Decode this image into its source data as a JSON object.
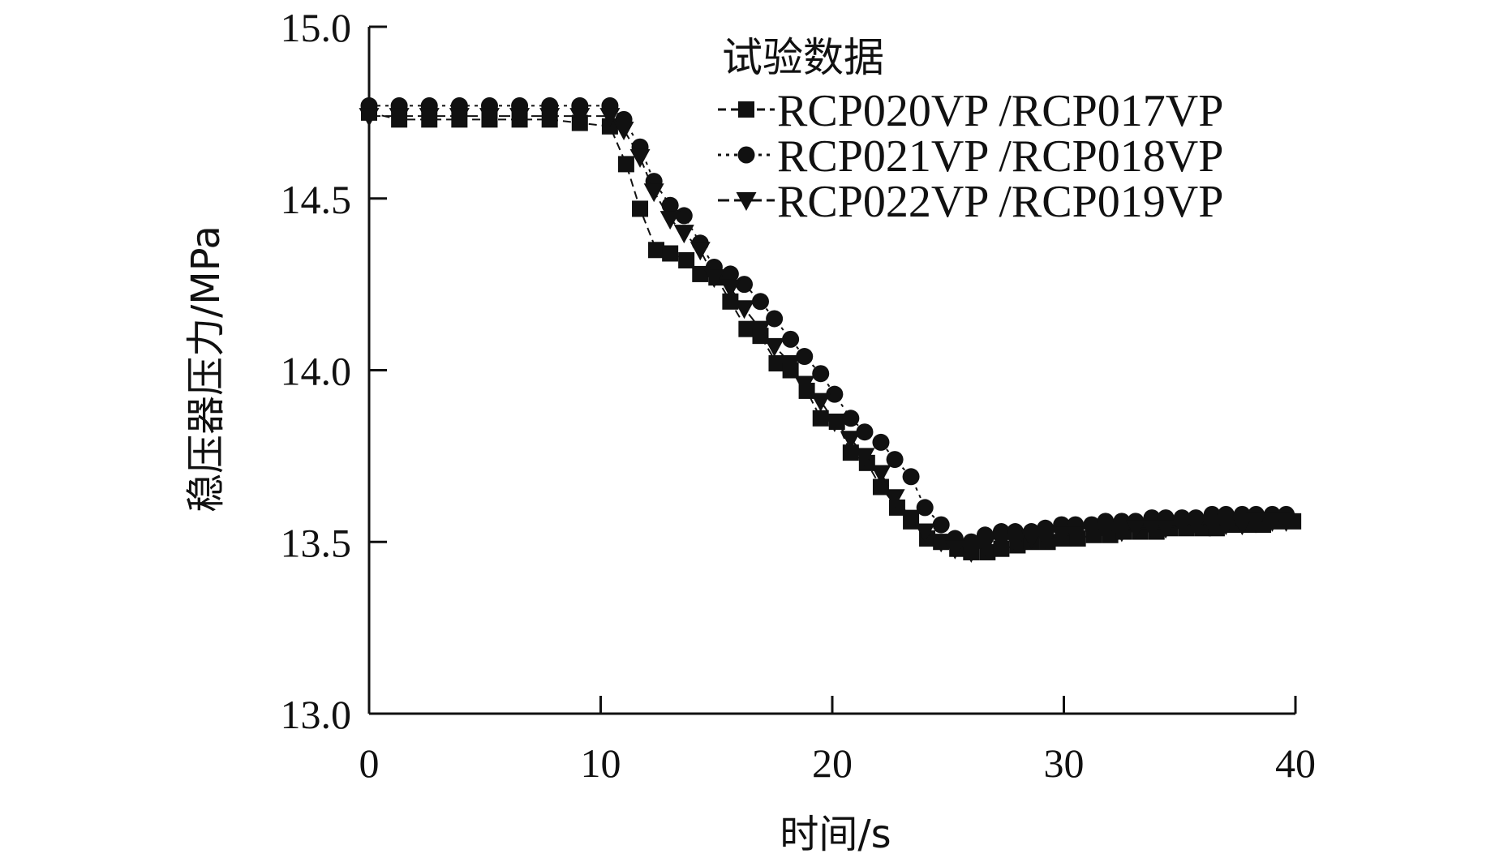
{
  "chart_data": {
    "type": "line",
    "xlabel": "时间/s",
    "ylabel": "稳压器压力/MPa",
    "xlim": [
      0,
      40
    ],
    "ylim": [
      13.0,
      15.0
    ],
    "xticks": [
      "0",
      "10",
      "20",
      "30",
      "40"
    ],
    "yticks": [
      "13.0",
      "13.5",
      "14.0",
      "14.5",
      "15.0"
    ],
    "grid": false,
    "legend": {
      "title": "试验数据",
      "placement": "top-right"
    },
    "series": [
      {
        "name": "RCP020VP /RCP017VP",
        "marker": "square",
        "x": [
          0,
          1.3,
          2.6,
          3.9,
          5.2,
          6.5,
          7.8,
          9.1,
          10.4,
          11.1,
          11.7,
          12.4,
          13.0,
          13.7,
          14.3,
          15.0,
          15.6,
          16.3,
          16.9,
          17.6,
          18.2,
          18.9,
          19.5,
          20.2,
          20.8,
          21.5,
          22.1,
          22.8,
          23.4,
          24.1,
          24.7,
          25.4,
          26.0,
          26.7,
          27.3,
          28.0,
          28.6,
          29.3,
          30.0,
          30.6,
          31.3,
          32.0,
          32.6,
          33.3,
          34.0,
          34.6,
          35.3,
          36.0,
          36.6,
          37.3,
          38.0,
          38.6,
          39.3,
          39.9
        ],
        "y": [
          14.75,
          14.73,
          14.73,
          14.73,
          14.73,
          14.73,
          14.73,
          14.72,
          14.71,
          14.6,
          14.47,
          14.35,
          14.34,
          14.32,
          14.28,
          14.27,
          14.2,
          14.12,
          14.1,
          14.02,
          14.0,
          13.94,
          13.86,
          13.85,
          13.76,
          13.73,
          13.66,
          13.6,
          13.56,
          13.51,
          13.5,
          13.48,
          13.47,
          13.47,
          13.48,
          13.49,
          13.5,
          13.5,
          13.51,
          13.51,
          13.52,
          13.52,
          13.53,
          13.53,
          13.53,
          13.54,
          13.54,
          13.54,
          13.54,
          13.55,
          13.55,
          13.55,
          13.56,
          13.56
        ]
      },
      {
        "name": "RCP021VP /RCP018VP",
        "marker": "circle",
        "x": [
          0,
          1.3,
          2.6,
          3.9,
          5.2,
          6.5,
          7.8,
          9.1,
          10.4,
          11.0,
          11.7,
          12.3,
          13.0,
          13.6,
          14.3,
          14.9,
          15.6,
          16.2,
          16.9,
          17.5,
          18.2,
          18.8,
          19.5,
          20.1,
          20.8,
          21.4,
          22.1,
          22.7,
          23.4,
          24.0,
          24.7,
          25.3,
          26.0,
          26.6,
          27.3,
          27.9,
          28.6,
          29.2,
          29.9,
          30.5,
          31.2,
          31.8,
          32.5,
          33.1,
          33.8,
          34.4,
          35.1,
          35.7,
          36.4,
          37.0,
          37.7,
          38.3,
          39.0,
          39.6
        ],
        "y": [
          14.77,
          14.77,
          14.77,
          14.77,
          14.77,
          14.77,
          14.77,
          14.77,
          14.77,
          14.73,
          14.65,
          14.55,
          14.48,
          14.45,
          14.37,
          14.3,
          14.28,
          14.25,
          14.2,
          14.15,
          14.09,
          14.04,
          13.99,
          13.93,
          13.86,
          13.82,
          13.79,
          13.74,
          13.69,
          13.6,
          13.55,
          13.51,
          13.5,
          13.52,
          13.53,
          13.53,
          13.53,
          13.54,
          13.55,
          13.55,
          13.55,
          13.56,
          13.56,
          13.56,
          13.57,
          13.57,
          13.57,
          13.57,
          13.58,
          13.58,
          13.58,
          13.58,
          13.58,
          13.58
        ]
      },
      {
        "name": "RCP022VP /RCP019VP",
        "marker": "triangle-down",
        "x": [
          0,
          1.3,
          2.6,
          3.9,
          5.2,
          6.5,
          7.8,
          9.1,
          10.4,
          11.0,
          11.7,
          12.3,
          13.0,
          13.6,
          14.3,
          14.9,
          15.6,
          16.2,
          16.9,
          17.5,
          18.2,
          18.8,
          19.5,
          20.1,
          20.8,
          21.4,
          22.1,
          22.7,
          23.4,
          24.0,
          24.7,
          25.3,
          26.0,
          26.6,
          27.3,
          27.9,
          28.6,
          29.2,
          29.9,
          30.5,
          31.2,
          31.8,
          32.5,
          33.1,
          33.8,
          34.4,
          35.1,
          35.7,
          36.4,
          37.0,
          37.7,
          38.3,
          39.0,
          39.6
        ],
        "y": [
          14.74,
          14.74,
          14.74,
          14.74,
          14.74,
          14.74,
          14.74,
          14.74,
          14.74,
          14.7,
          14.62,
          14.52,
          14.44,
          14.4,
          14.35,
          14.27,
          14.24,
          14.18,
          14.12,
          14.07,
          14.02,
          13.96,
          13.91,
          13.85,
          13.8,
          13.75,
          13.7,
          13.63,
          13.57,
          13.53,
          13.5,
          13.48,
          13.47,
          13.49,
          13.5,
          13.5,
          13.51,
          13.51,
          13.52,
          13.52,
          13.53,
          13.53,
          13.53,
          13.54,
          13.54,
          13.54,
          13.55,
          13.55,
          13.55,
          13.55,
          13.55,
          13.56,
          13.56,
          13.56
        ]
      }
    ]
  }
}
